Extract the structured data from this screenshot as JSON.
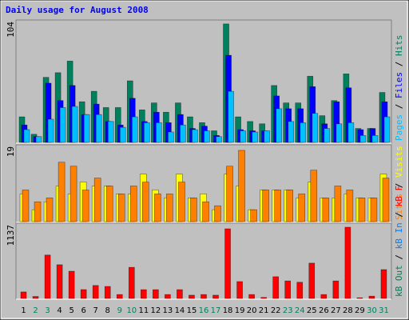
{
  "chart_data": [
    {
      "type": "bar",
      "title": "Daily usage for August 2008",
      "ylim": [
        0,
        104
      ],
      "yticks": [
        104
      ],
      "series": [
        {
          "name": "Hits",
          "color": "#00805c",
          "values": [
            22,
            7,
            56,
            60,
            70,
            35,
            44,
            30,
            30,
            53,
            28,
            34,
            26,
            34,
            22,
            17,
            10,
            102,
            22,
            18,
            16,
            49,
            34,
            34,
            57,
            23,
            36,
            59,
            12,
            12,
            43
          ]
        },
        {
          "name": "Files",
          "color": "#0000ff",
          "values": [
            15,
            5,
            51,
            36,
            49,
            24,
            33,
            18,
            15,
            38,
            18,
            26,
            17,
            24,
            12,
            14,
            6,
            75,
            11,
            10,
            10,
            40,
            29,
            29,
            48,
            16,
            35,
            47,
            11,
            12,
            35
          ]
        },
        {
          "name": "Pages",
          "color": "#00c0ff",
          "values": [
            11,
            5,
            20,
            30,
            31,
            24,
            24,
            18,
            13,
            22,
            17,
            17,
            9,
            15,
            11,
            10,
            5,
            44,
            10,
            9,
            10,
            29,
            18,
            17,
            25,
            12,
            16,
            17,
            6,
            6,
            22
          ]
        }
      ]
    },
    {
      "type": "bar",
      "ylim": [
        0,
        19
      ],
      "yticks": [
        19
      ],
      "series": [
        {
          "name": "Visits",
          "color": "#ffff00",
          "values": [
            7,
            3,
            5,
            9,
            7,
            10,
            9,
            9,
            7,
            7,
            12,
            8,
            6,
            12,
            6,
            7,
            3,
            12,
            9,
            3,
            8,
            8,
            8,
            6,
            10,
            6,
            6,
            7,
            6,
            6,
            12
          ]
        },
        {
          "name": "Sites",
          "color": "#ff8000",
          "values": [
            8,
            5,
            6,
            15,
            14,
            8,
            11,
            9,
            7,
            9,
            10,
            7,
            7,
            10,
            6,
            5,
            4,
            14,
            18,
            3,
            8,
            8,
            8,
            7,
            13,
            6,
            9,
            8,
            6,
            6,
            11
          ]
        }
      ]
    },
    {
      "type": "bar",
      "ylim": [
        0,
        1137
      ],
      "yticks": [
        1137
      ],
      "categories": [
        "1",
        "2",
        "3",
        "4",
        "5",
        "6",
        "7",
        "8",
        "9",
        "10",
        "11",
        "12",
        "13",
        "14",
        "15",
        "16",
        "17",
        "18",
        "19",
        "20",
        "21",
        "22",
        "23",
        "24",
        "25",
        "26",
        "27",
        "28",
        "29",
        "30",
        "31"
      ],
      "category_colors": [
        "#000000",
        "#00805c",
        "#00805c",
        "#000000",
        "#000000",
        "#000000",
        "#000000",
        "#000000",
        "#00805c",
        "#00805c",
        "#000000",
        "#000000",
        "#000000",
        "#000000",
        "#000000",
        "#00805c",
        "#00805c",
        "#000000",
        "#000000",
        "#000000",
        "#000000",
        "#000000",
        "#00805c",
        "#00805c",
        "#000000",
        "#000000",
        "#000000",
        "#000000",
        "#000000",
        "#00805c",
        "#00805c"
      ],
      "series": [
        {
          "name": "kB F",
          "color": "#ff0000",
          "values": [
            100,
            30,
            670,
            520,
            420,
            136,
            200,
            185,
            60,
            480,
            135,
            135,
            60,
            135,
            50,
            60,
            50,
            1075,
            260,
            60,
            15,
            335,
            270,
            250,
            545,
            60,
            270,
            1100,
            10,
            35,
            445
          ]
        },
        {
          "name": "kB In",
          "color": "#0080ff",
          "values": [
            0,
            0,
            0,
            0,
            0,
            0,
            0,
            0,
            0,
            0,
            0,
            0,
            0,
            0,
            0,
            0,
            0,
            0,
            0,
            0,
            0,
            0,
            0,
            0,
            0,
            0,
            0,
            0,
            0,
            0,
            0
          ]
        },
        {
          "name": "kB Out",
          "color": "#00805c",
          "values": [
            0,
            0,
            0,
            0,
            0,
            0,
            0,
            0,
            0,
            0,
            0,
            0,
            0,
            0,
            0,
            0,
            0,
            0,
            0,
            0,
            0,
            0,
            0,
            0,
            0,
            0,
            0,
            0,
            0,
            0,
            0
          ]
        }
      ]
    }
  ]
}
